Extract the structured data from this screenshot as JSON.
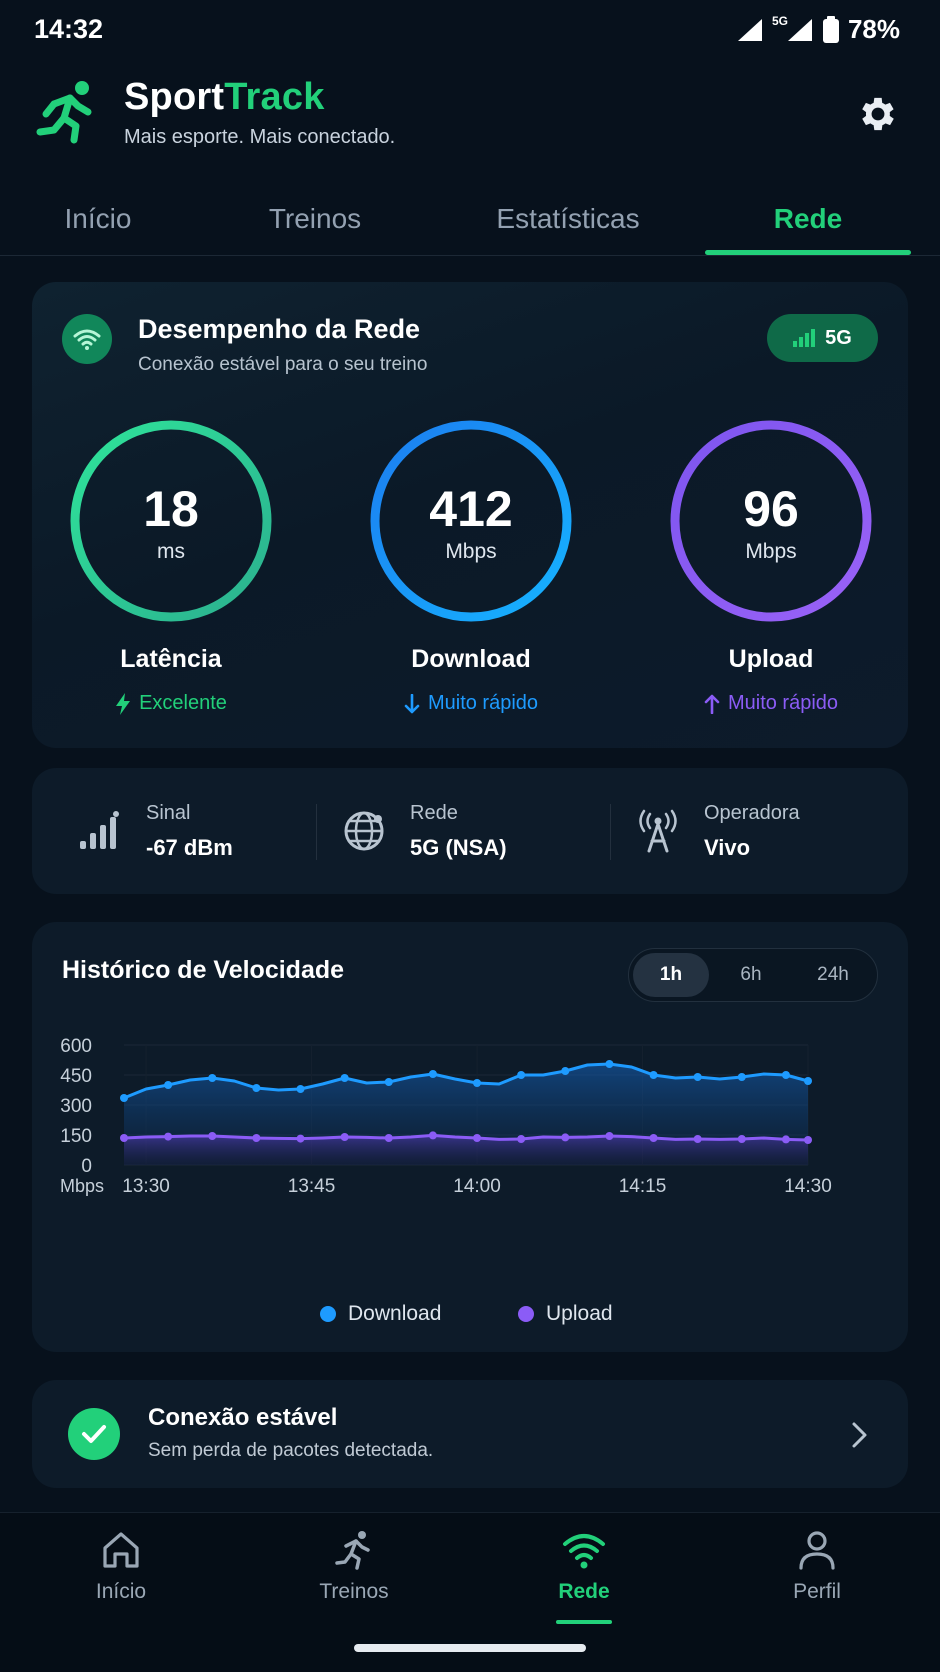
{
  "status_bar": {
    "time": "14:32",
    "network": "5G",
    "battery": "78%"
  },
  "header": {
    "brand_main": "Sport",
    "brand_accent": "Track",
    "tagline": "Mais esporte. Mais conectado."
  },
  "tabs": [
    {
      "label": "Início",
      "active": false
    },
    {
      "label": "Treinos",
      "active": false
    },
    {
      "label": "Estatísticas",
      "active": false
    },
    {
      "label": "Rede",
      "active": true
    }
  ],
  "network_card": {
    "title": "Desempenho da Rede",
    "subtitle": "Conexão estável para o seu treino",
    "badge": "5G",
    "metrics": [
      {
        "value": "18",
        "unit": "ms",
        "label": "Latência",
        "status": "Excelente",
        "color": "#22d07a"
      },
      {
        "value": "412",
        "unit": "Mbps",
        "label": "Download",
        "status": "Muito rápido",
        "color": "#1e9bff"
      },
      {
        "value": "96",
        "unit": "Mbps",
        "label": "Upload",
        "status": "Muito rápido",
        "color": "#8b5cf6"
      }
    ]
  },
  "info": {
    "signal": {
      "label": "Sinal",
      "value": "-67 dBm"
    },
    "network": {
      "label": "Rede",
      "value": "5G (NSA)"
    },
    "carrier": {
      "label": "Operadora",
      "value": "Vivo"
    }
  },
  "history": {
    "title": "Histórico de Velocidade",
    "ranges": [
      {
        "label": "1h",
        "active": true
      },
      {
        "label": "6h",
        "active": false
      },
      {
        "label": "24h",
        "active": false
      }
    ],
    "legend": {
      "download": "Download",
      "upload": "Upload"
    }
  },
  "chart_data": {
    "type": "area",
    "ylabel": "Mbps",
    "ylim": [
      0,
      600
    ],
    "y_ticks": [
      "600",
      "450",
      "300",
      "150",
      "0"
    ],
    "x_ticks": [
      "13:30",
      "13:45",
      "14:00",
      "14:15",
      "14:30"
    ],
    "grid": true,
    "legend_position": "bottom-center",
    "x": [
      "13:28",
      "13:30",
      "13:32",
      "13:34",
      "13:36",
      "13:38",
      "13:40",
      "13:42",
      "13:44",
      "13:46",
      "13:48",
      "13:50",
      "13:52",
      "13:54",
      "13:56",
      "13:58",
      "14:00",
      "14:02",
      "14:04",
      "14:06",
      "14:08",
      "14:10",
      "14:12",
      "14:14",
      "14:16",
      "14:18",
      "14:20",
      "14:22",
      "14:24",
      "14:26",
      "14:28",
      "14:30"
    ],
    "series": [
      {
        "name": "Download",
        "color": "#1e9bff",
        "values": [
          335,
          380,
          400,
          425,
          435,
          420,
          385,
          375,
          380,
          405,
          435,
          410,
          415,
          440,
          455,
          430,
          410,
          405,
          450,
          450,
          470,
          500,
          505,
          490,
          450,
          435,
          440,
          430,
          440,
          455,
          450,
          420
        ]
      },
      {
        "name": "Upload",
        "color": "#8b5cf6",
        "values": [
          135,
          140,
          142,
          145,
          145,
          140,
          135,
          133,
          132,
          135,
          140,
          138,
          135,
          140,
          148,
          140,
          135,
          128,
          130,
          140,
          138,
          140,
          145,
          142,
          135,
          128,
          130,
          128,
          130,
          135,
          128,
          125
        ]
      }
    ]
  },
  "stable": {
    "title": "Conexão estável",
    "subtitle": "Sem perda de pacotes detectada."
  },
  "bottom_nav": [
    {
      "label": "Início",
      "icon": "home-icon",
      "active": false
    },
    {
      "label": "Treinos",
      "icon": "runner-icon",
      "active": false
    },
    {
      "label": "Rede",
      "icon": "wifi-icon",
      "active": true
    },
    {
      "label": "Perfil",
      "icon": "user-icon",
      "active": false
    }
  ]
}
